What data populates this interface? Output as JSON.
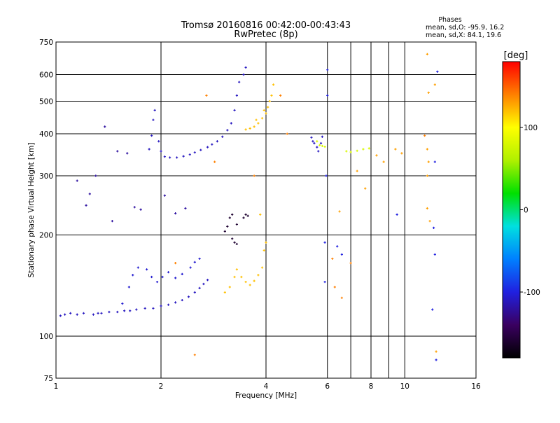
{
  "chart_data": {
    "type": "scatter",
    "title": "Tromsø 20160816 00:42:00-00:43:43",
    "subtitle": "RwPretec (8p)",
    "xlabel": "Frequency [MHz]",
    "ylabel": "Stationary phase Virtual Height [km]",
    "x_scale": "log",
    "y_scale": "log",
    "xlim": [
      1,
      16
    ],
    "ylim": [
      75,
      750
    ],
    "x_ticks": [
      1,
      2,
      4,
      6,
      8,
      9,
      10,
      16
    ],
    "x_tick_labels": [
      "1",
      "2",
      "4",
      "6",
      "8",
      "",
      "10",
      "16"
    ],
    "x_minor_lines": [
      7,
      9
    ],
    "y_ticks": [
      75,
      100,
      200,
      300,
      400,
      500,
      600,
      750
    ],
    "y_tick_labels": [
      "75",
      "100",
      "200",
      "300",
      "400",
      "500",
      "600",
      "750"
    ],
    "grid": true,
    "legend_header": "Phases",
    "legend_lines": [
      "mean, sd,O: -95.9, 16.2",
      "mean, sd,X:  84.1, 19.6"
    ],
    "colorbar": {
      "label": "[deg]",
      "min": -180,
      "max": 180,
      "ticks": [
        100,
        0,
        -100
      ],
      "tick_labels": [
        "100",
        "0",
        "-100"
      ],
      "colors": [
        "#000000",
        "#3a0060",
        "#2020e0",
        "#0080ff",
        "#00e0e0",
        "#00e000",
        "#b0f000",
        "#ffff00",
        "#ff8000",
        "#ff0000"
      ]
    },
    "traces": [
      {
        "name": "",
        "phase": -110,
        "points": [
          [
            1.03,
            115
          ],
          [
            1.06,
            116
          ],
          [
            1.1,
            117
          ],
          [
            1.15,
            116
          ],
          [
            1.2,
            117
          ],
          [
            1.28,
            116
          ],
          [
            1.32,
            117
          ],
          [
            1.35,
            117
          ],
          [
            1.42,
            118
          ],
          [
            1.5,
            118
          ],
          [
            1.57,
            119
          ],
          [
            1.63,
            119
          ],
          [
            1.7,
            120
          ],
          [
            1.8,
            121
          ],
          [
            1.9,
            121
          ],
          [
            2.0,
            123
          ],
          [
            2.1,
            124
          ],
          [
            2.2,
            126
          ],
          [
            2.3,
            128
          ],
          [
            2.4,
            131
          ],
          [
            2.5,
            135
          ],
          [
            2.58,
            139
          ],
          [
            2.65,
            143
          ],
          [
            2.72,
            147
          ]
        ]
      },
      {
        "name": "",
        "phase": -105,
        "points": [
          [
            1.55,
            125
          ],
          [
            1.62,
            140
          ],
          [
            1.66,
            152
          ],
          [
            1.72,
            160
          ],
          [
            1.82,
            158
          ],
          [
            1.88,
            150
          ],
          [
            1.95,
            145
          ],
          [
            2.02,
            150
          ],
          [
            2.1,
            155
          ],
          [
            2.2,
            149
          ],
          [
            2.3,
            153
          ],
          [
            2.43,
            160
          ],
          [
            2.5,
            166
          ],
          [
            2.58,
            170
          ]
        ]
      },
      {
        "name": "",
        "phase": -110,
        "points": [
          [
            1.85,
            360
          ],
          [
            1.88,
            395
          ],
          [
            1.9,
            440
          ],
          [
            1.92,
            470
          ],
          [
            1.97,
            380
          ],
          [
            2.0,
            355
          ],
          [
            2.05,
            342
          ],
          [
            2.12,
            340
          ],
          [
            2.22,
            340
          ],
          [
            2.32,
            343
          ],
          [
            2.42,
            347
          ],
          [
            2.5,
            352
          ],
          [
            2.6,
            358
          ],
          [
            2.72,
            365
          ],
          [
            2.8,
            372
          ],
          [
            2.9,
            380
          ],
          [
            3.0,
            392
          ],
          [
            3.1,
            410
          ],
          [
            3.18,
            430
          ],
          [
            3.25,
            470
          ],
          [
            3.3,
            520
          ],
          [
            3.35,
            570
          ],
          [
            3.45,
            600
          ],
          [
            3.5,
            630
          ]
        ]
      },
      {
        "name": "",
        "phase": -160,
        "points": [
          [
            3.05,
            205
          ],
          [
            3.1,
            212
          ],
          [
            3.15,
            225
          ],
          [
            3.2,
            230
          ],
          [
            3.3,
            215
          ],
          [
            3.45,
            225
          ],
          [
            3.5,
            230
          ],
          [
            3.55,
            228
          ],
          [
            3.2,
            195
          ],
          [
            3.25,
            190
          ],
          [
            3.3,
            188
          ]
        ]
      },
      {
        "name": "",
        "phase": 120,
        "points": [
          [
            3.05,
            135
          ],
          [
            3.15,
            140
          ],
          [
            3.25,
            150
          ],
          [
            3.3,
            158
          ],
          [
            3.4,
            150
          ],
          [
            3.5,
            145
          ],
          [
            3.6,
            142
          ],
          [
            3.7,
            146
          ],
          [
            3.8,
            152
          ],
          [
            3.9,
            160
          ],
          [
            3.95,
            180
          ],
          [
            4.0,
            190
          ],
          [
            3.85,
            230
          ]
        ]
      },
      {
        "name": "",
        "phase": 120,
        "points": [
          [
            3.5,
            412
          ],
          [
            3.6,
            415
          ],
          [
            3.7,
            420
          ],
          [
            3.8,
            430
          ],
          [
            3.9,
            445
          ],
          [
            4.0,
            460
          ],
          [
            4.05,
            480
          ],
          [
            4.1,
            500
          ],
          [
            4.15,
            520
          ],
          [
            4.2,
            560
          ],
          [
            3.75,
            440
          ],
          [
            3.95,
            470
          ]
        ]
      },
      {
        "name": "",
        "phase": 80,
        "points": [
          [
            5.6,
            380
          ],
          [
            5.7,
            370
          ],
          [
            5.8,
            368
          ],
          [
            5.9,
            366
          ],
          [
            6.8,
            355
          ],
          [
            7.0,
            353
          ],
          [
            7.3,
            356
          ],
          [
            7.6,
            360
          ],
          [
            7.9,
            362
          ]
        ]
      },
      {
        "name": "",
        "phase": -110,
        "points": [
          [
            5.4,
            390
          ],
          [
            5.45,
            380
          ],
          [
            5.5,
            375
          ],
          [
            5.6,
            365
          ],
          [
            5.65,
            355
          ],
          [
            5.8,
            392
          ],
          [
            5.75,
            375
          ]
        ]
      },
      {
        "name": "",
        "phase": -120,
        "points": [
          [
            1.15,
            290
          ],
          [
            1.22,
            245
          ],
          [
            1.3,
            300
          ],
          [
            1.38,
            420
          ],
          [
            1.5,
            355
          ],
          [
            1.6,
            350
          ],
          [
            1.68,
            242
          ],
          [
            1.75,
            238
          ],
          [
            2.05,
            262
          ],
          [
            2.2,
            232
          ],
          [
            2.35,
            240
          ],
          [
            1.45,
            220
          ],
          [
            1.25,
            265
          ]
        ]
      },
      {
        "name": "",
        "phase": 130,
        "points": [
          [
            6.5,
            235
          ],
          [
            7.3,
            310
          ],
          [
            7.7,
            275
          ],
          [
            8.3,
            345
          ],
          [
            8.7,
            330
          ],
          [
            9.4,
            360
          ],
          [
            9.8,
            350
          ],
          [
            11.6,
            690
          ],
          [
            11.7,
            530
          ],
          [
            12.2,
            560
          ],
          [
            11.6,
            360
          ],
          [
            11.7,
            330
          ],
          [
            11.6,
            300
          ],
          [
            11.6,
            240
          ],
          [
            11.8,
            220
          ],
          [
            12.3,
            90
          ]
        ]
      },
      {
        "name": "",
        "phase": -100,
        "points": [
          [
            6.0,
            620
          ],
          [
            6.0,
            520
          ],
          [
            5.95,
            300
          ],
          [
            5.9,
            190
          ],
          [
            5.9,
            145
          ],
          [
            6.4,
            185
          ],
          [
            6.6,
            175
          ],
          [
            9.5,
            230
          ],
          [
            12.1,
            210
          ],
          [
            12.2,
            175
          ],
          [
            12.4,
            612
          ],
          [
            12.0,
            120
          ],
          [
            12.3,
            85
          ],
          [
            12.2,
            330
          ]
        ]
      },
      {
        "name": "",
        "phase": 140,
        "points": [
          [
            2.5,
            88
          ],
          [
            2.2,
            165
          ],
          [
            2.7,
            520
          ],
          [
            2.85,
            330
          ],
          [
            3.7,
            300
          ],
          [
            4.4,
            520
          ],
          [
            4.6,
            400
          ],
          [
            6.2,
            170
          ],
          [
            6.3,
            140
          ],
          [
            6.6,
            130
          ],
          [
            7.0,
            165
          ],
          [
            11.4,
            395
          ]
        ]
      }
    ]
  }
}
